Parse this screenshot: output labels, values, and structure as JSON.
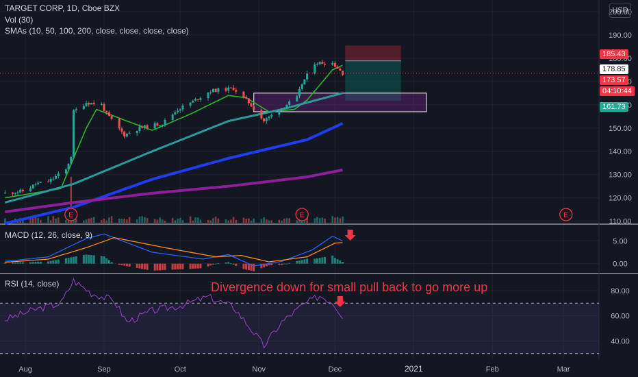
{
  "header": {
    "symbol_line": "TARGET CORP, 1D, Cboe BZX",
    "volume_line": "Vol (30)",
    "sma_line": "SMAs (10, 50, 100, 200, close, close, close, close)",
    "currency": "USD"
  },
  "price_tags": {
    "target": "185.43",
    "entry": "178.85",
    "last": "173.57",
    "countdown": "04:10:44",
    "stop": "161.73"
  },
  "panes": {
    "macd_title": "MACD (12, 26, close, 9)",
    "rsi_title": "RSI (14, close)"
  },
  "annotation": "Divergence down for small pull back to go more up",
  "earnings_marker": "E",
  "colors": {
    "background": "#131722",
    "up": "#26a69a",
    "down": "#ef5350",
    "sma10": "#2db52d",
    "sma50": "#2a9a9a",
    "sma100": "#1f3ef0",
    "sma200": "#8e1f9c",
    "macd_line": "#2962ff",
    "signal_line": "#ff8c1a",
    "rsi_line": "#9c45c9",
    "annotation": "#f23645"
  },
  "chart_data": [
    {
      "type": "candlestick",
      "title": "TARGET CORP, 1D, Cboe BZX",
      "y_axis": {
        "ticks": [
          110,
          120,
          130,
          140,
          150,
          160,
          170,
          180,
          190,
          200
        ],
        "ylim": [
          109,
          205
        ]
      },
      "x_axis": {
        "ticks": [
          "Aug",
          "Sep",
          "Oct",
          "Nov",
          "Dec",
          "2021",
          "Feb",
          "Mar"
        ]
      },
      "price_path": [
        [
          "2020-07-24",
          122
        ],
        [
          "2020-08-01",
          123
        ],
        [
          "2020-08-05",
          126
        ],
        [
          "2020-08-10",
          127
        ],
        [
          "2020-08-17",
          132
        ],
        [
          "2020-08-19",
          138
        ],
        [
          "2020-08-20",
          157
        ],
        [
          "2020-08-25",
          161
        ],
        [
          "2020-08-31",
          160
        ],
        [
          "2020-09-02",
          156
        ],
        [
          "2020-09-09",
          147
        ],
        [
          "2020-09-15",
          150
        ],
        [
          "2020-09-24",
          152
        ],
        [
          "2020-09-30",
          158
        ],
        [
          "2020-10-07",
          162
        ],
        [
          "2020-10-13",
          166
        ],
        [
          "2020-10-22",
          167
        ],
        [
          "2020-10-28",
          161
        ],
        [
          "2020-11-03",
          153
        ],
        [
          "2020-11-09",
          158
        ],
        [
          "2020-11-16",
          163
        ],
        [
          "2020-11-18",
          169
        ],
        [
          "2020-11-23",
          178
        ],
        [
          "2020-11-30",
          178
        ],
        [
          "2020-12-04",
          173.57
        ]
      ],
      "sma_curves": {
        "SMA 10": [
          [
            "2020-07-24",
            120
          ],
          [
            "2020-08-15",
            124
          ],
          [
            "2020-08-25",
            150
          ],
          [
            "2020-08-29",
            158
          ],
          [
            "2020-09-10",
            153
          ],
          [
            "2020-09-20",
            149
          ],
          [
            "2020-10-05",
            156
          ],
          [
            "2020-10-20",
            164
          ],
          [
            "2020-10-27",
            163
          ],
          [
            "2020-11-05",
            157
          ],
          [
            "2020-11-15",
            158
          ],
          [
            "2020-11-20",
            162
          ],
          [
            "2020-11-30",
            175
          ],
          [
            "2020-12-04",
            177
          ]
        ],
        "SMA 50": [
          [
            "2020-07-24",
            118
          ],
          [
            "2020-08-20",
            126
          ],
          [
            "2020-09-20",
            140
          ],
          [
            "2020-10-20",
            153
          ],
          [
            "2020-11-10",
            158
          ],
          [
            "2020-12-04",
            165
          ]
        ],
        "SMA 100": [
          [
            "2020-07-24",
            109
          ],
          [
            "2020-08-20",
            116
          ],
          [
            "2020-09-20",
            128
          ],
          [
            "2020-10-20",
            137
          ],
          [
            "2020-11-20",
            145
          ],
          [
            "2020-12-04",
            152
          ]
        ],
        "SMA 200": [
          [
            "2020-07-24",
            114
          ],
          [
            "2020-08-20",
            118
          ],
          [
            "2020-09-20",
            122
          ],
          [
            "2020-10-20",
            125
          ],
          [
            "2020-11-20",
            129
          ],
          [
            "2020-12-04",
            132
          ]
        ]
      },
      "levels": {
        "target": 185.43,
        "entry": 178.85,
        "last": 173.57,
        "stop": 161.73
      },
      "annotation_box": {
        "date_from": "2020-10-30",
        "date_to": "2021-01-06",
        "price_low": 157,
        "price_high": 165
      },
      "earnings_events": [
        "2020-08-19",
        "2020-11-18",
        "2021-03-02"
      ]
    },
    {
      "type": "line",
      "title": "MACD (12, 26, close, 9)",
      "y_axis": {
        "ticks": [
          0.0,
          5.0
        ],
        "ylim": [
          -2,
          8.5
        ]
      },
      "series": [
        {
          "name": "MACD",
          "points": [
            [
              "2020-07-24",
              0.5
            ],
            [
              "2020-08-10",
              1.5
            ],
            [
              "2020-08-25",
              5.5
            ],
            [
              "2020-09-01",
              6.5
            ],
            [
              "2020-09-20",
              2.5
            ],
            [
              "2020-10-10",
              1.0
            ],
            [
              "2020-10-20",
              2.0
            ],
            [
              "2020-10-30",
              -0.5
            ],
            [
              "2020-11-10",
              0.5
            ],
            [
              "2020-11-22",
              3.0
            ],
            [
              "2020-11-30",
              6.0
            ],
            [
              "2020-12-04",
              5.0
            ]
          ]
        },
        {
          "name": "Signal",
          "points": [
            [
              "2020-07-24",
              0.3
            ],
            [
              "2020-08-10",
              1.0
            ],
            [
              "2020-08-25",
              3.5
            ],
            [
              "2020-09-05",
              5.7
            ],
            [
              "2020-09-25",
              3.5
            ],
            [
              "2020-10-15",
              1.5
            ],
            [
              "2020-10-25",
              1.8
            ],
            [
              "2020-11-05",
              0.4
            ],
            [
              "2020-11-20",
              1.5
            ],
            [
              "2020-12-01",
              4.5
            ],
            [
              "2020-12-04",
              4.6
            ]
          ]
        }
      ]
    },
    {
      "type": "line",
      "title": "RSI (14, close)",
      "y_axis": {
        "ticks": [
          40.0,
          60.0,
          80.0
        ],
        "ylim": [
          25,
          93
        ]
      },
      "bands": [
        30,
        70
      ],
      "series": [
        {
          "name": "RSI",
          "points": [
            [
              "2020-07-24",
              57
            ],
            [
              "2020-08-05",
              65
            ],
            [
              "2020-08-15",
              70
            ],
            [
              "2020-08-20",
              88
            ],
            [
              "2020-08-27",
              78
            ],
            [
              "2020-09-05",
              72
            ],
            [
              "2020-09-10",
              55
            ],
            [
              "2020-09-20",
              64
            ],
            [
              "2020-10-01",
              68
            ],
            [
              "2020-10-12",
              75
            ],
            [
              "2020-10-22",
              67
            ],
            [
              "2020-10-28",
              52
            ],
            [
              "2020-11-03",
              36
            ],
            [
              "2020-11-10",
              55
            ],
            [
              "2020-11-18",
              68
            ],
            [
              "2020-11-25",
              76
            ],
            [
              "2020-11-30",
              71
            ],
            [
              "2020-12-04",
              60
            ]
          ]
        }
      ]
    }
  ]
}
